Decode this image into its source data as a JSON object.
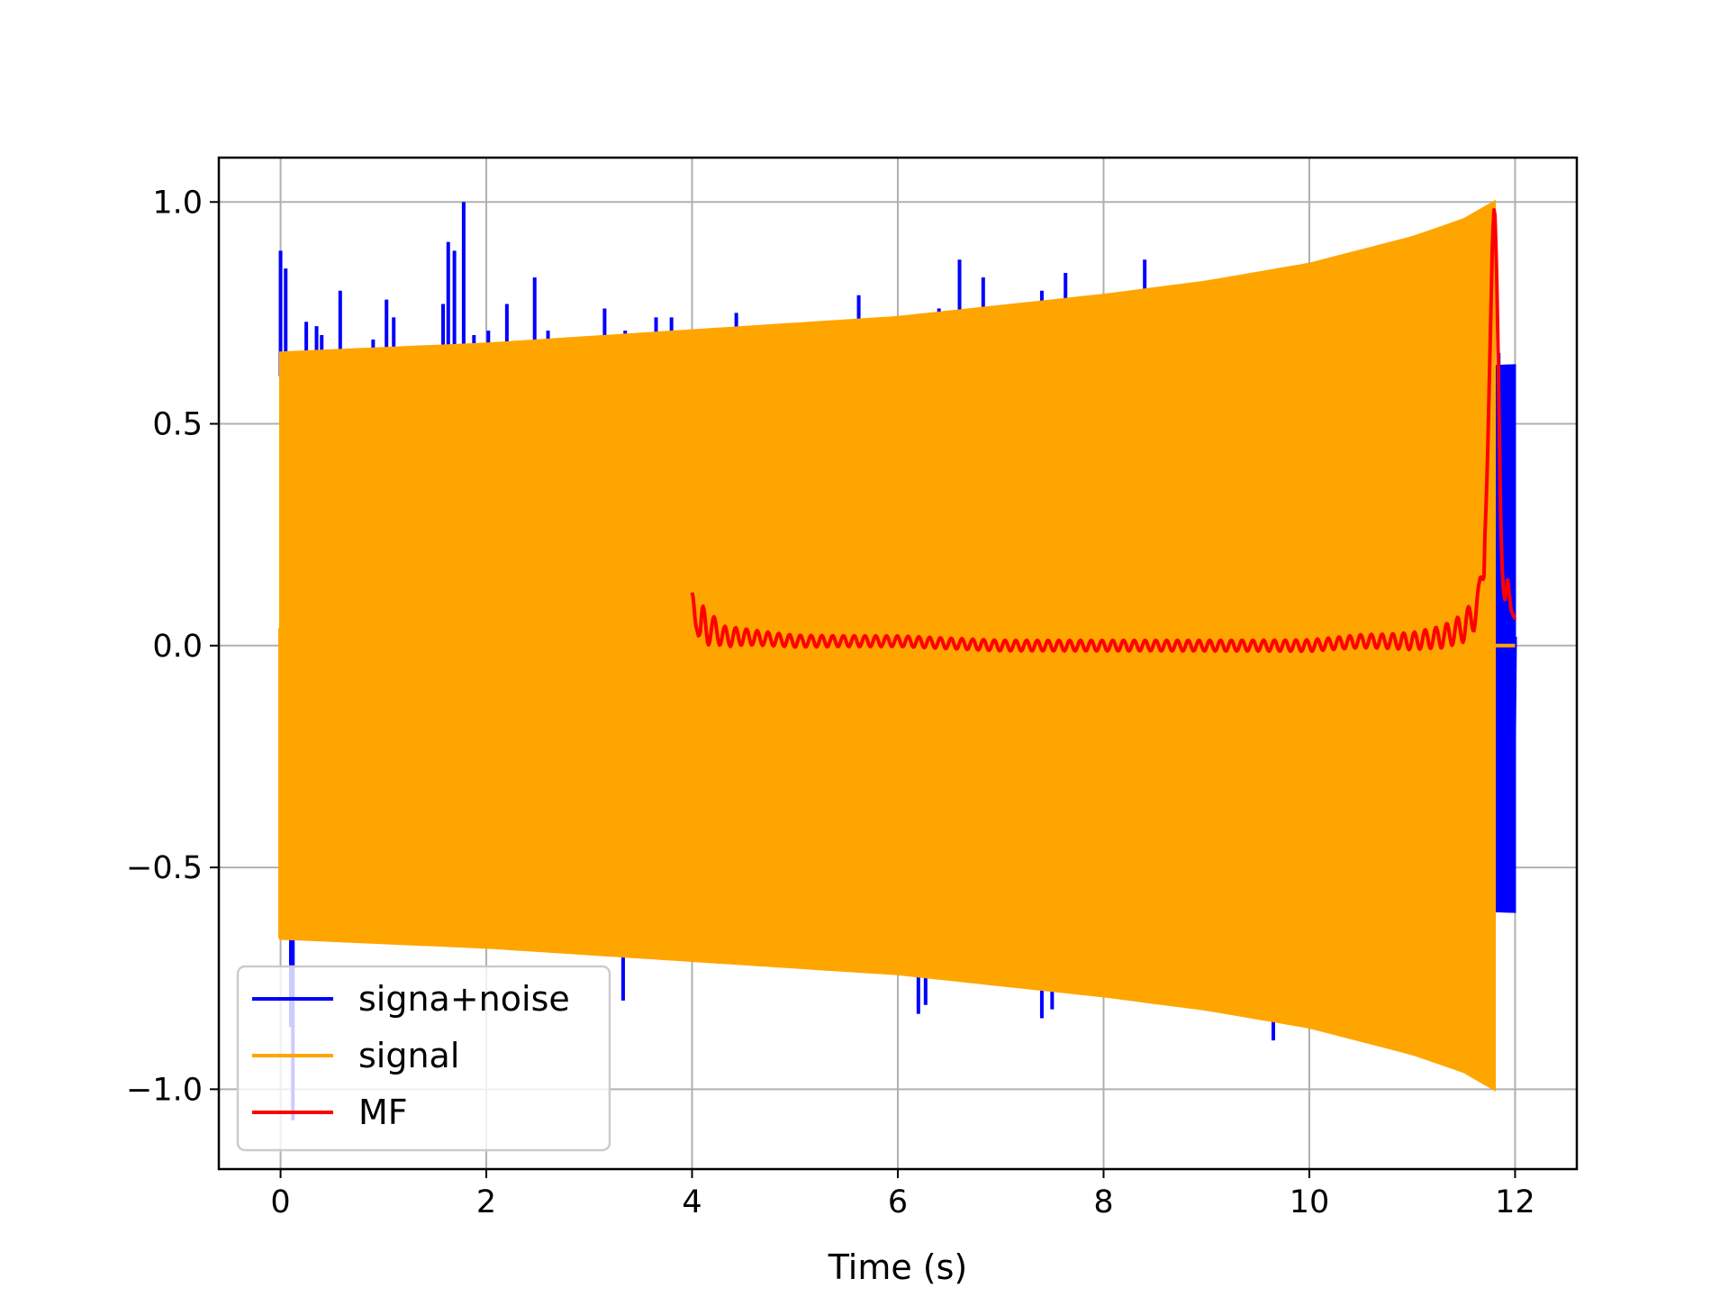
{
  "chart_data": {
    "type": "line",
    "title": "",
    "xlabel": "Time (s)",
    "ylabel": "",
    "xlim": [
      -0.6,
      12.6
    ],
    "ylim": [
      -1.18,
      1.1
    ],
    "xticks": [
      0,
      2,
      4,
      6,
      8,
      10,
      12
    ],
    "xtick_labels": [
      "0",
      "2",
      "4",
      "6",
      "8",
      "10",
      "12"
    ],
    "yticks": [
      -1.0,
      -0.5,
      0.0,
      0.5,
      1.0
    ],
    "ytick_labels": [
      "−1.0",
      "−0.5",
      "0.0",
      "0.5",
      "1.0"
    ],
    "grid": true,
    "legend_position": "lower-left",
    "series": [
      {
        "name": "signa+noise",
        "color": "#0000ff",
        "kind": "noisy-signal",
        "envelope_x": [
          0.0,
          2.0,
          4.0,
          6.0,
          8.0,
          9.0,
          10.0,
          11.0,
          11.5,
          11.8
        ],
        "envelope_y": [
          0.66,
          0.68,
          0.71,
          0.74,
          0.79,
          0.82,
          0.86,
          0.92,
          0.96,
          1.0
        ],
        "spikes": [
          {
            "x": 0.0,
            "y": 0.89
          },
          {
            "x": 0.05,
            "y": 0.85
          },
          {
            "x": 0.1,
            "y": -0.86
          },
          {
            "x": 0.12,
            "y": -1.07
          },
          {
            "x": 0.25,
            "y": 0.73
          },
          {
            "x": 0.35,
            "y": 0.72
          },
          {
            "x": 0.4,
            "y": 0.7
          },
          {
            "x": 0.58,
            "y": 0.8
          },
          {
            "x": 0.9,
            "y": 0.69
          },
          {
            "x": 1.03,
            "y": 0.78
          },
          {
            "x": 1.1,
            "y": 0.74
          },
          {
            "x": 1.58,
            "y": 0.77
          },
          {
            "x": 1.63,
            "y": 0.91
          },
          {
            "x": 1.69,
            "y": 0.89
          },
          {
            "x": 1.78,
            "y": 1.0
          },
          {
            "x": 1.88,
            "y": 0.7
          },
          {
            "x": 2.02,
            "y": 0.71
          },
          {
            "x": 2.2,
            "y": 0.77
          },
          {
            "x": 2.47,
            "y": 0.83
          },
          {
            "x": 2.6,
            "y": 0.71
          },
          {
            "x": 3.15,
            "y": 0.76
          },
          {
            "x": 3.33,
            "y": -0.8
          },
          {
            "x": 3.35,
            "y": 0.71
          },
          {
            "x": 3.65,
            "y": 0.74
          },
          {
            "x": 3.8,
            "y": 0.74
          },
          {
            "x": 4.43,
            "y": 0.75
          },
          {
            "x": 5.62,
            "y": 0.79
          },
          {
            "x": 6.2,
            "y": -0.83
          },
          {
            "x": 6.27,
            "y": -0.81
          },
          {
            "x": 6.4,
            "y": 0.76
          },
          {
            "x": 6.6,
            "y": 0.87
          },
          {
            "x": 6.83,
            "y": 0.83
          },
          {
            "x": 7.4,
            "y": 0.8
          },
          {
            "x": 7.4,
            "y": -0.84
          },
          {
            "x": 7.5,
            "y": -0.82
          },
          {
            "x": 7.63,
            "y": 0.84
          },
          {
            "x": 8.4,
            "y": 0.87
          },
          {
            "x": 9.65,
            "y": -0.89
          },
          {
            "x": 11.58,
            "y": 0.5
          },
          {
            "x": 11.68,
            "y": -0.4
          }
        ],
        "tail_x": [
          11.8,
          11.82,
          11.84,
          11.86,
          11.88,
          11.9,
          11.92,
          11.94,
          11.96,
          11.98,
          12.0
        ],
        "tail_y": [
          0.35,
          -0.49,
          0.66,
          -0.43,
          0.44,
          -0.47,
          0.49,
          -0.38,
          0.48,
          -0.48,
          0.02
        ]
      },
      {
        "name": "signal",
        "color": "#ffa500",
        "kind": "chirp",
        "x_range": [
          0.0,
          11.8
        ],
        "envelope_x": [
          0.0,
          2.0,
          4.0,
          6.0,
          8.0,
          9.0,
          10.0,
          11.0,
          11.5,
          11.8
        ],
        "envelope_y": [
          0.66,
          0.68,
          0.71,
          0.74,
          0.79,
          0.82,
          0.86,
          0.92,
          0.96,
          1.0
        ],
        "after_x": [
          11.8,
          12.0
        ],
        "after_y": [
          0.0,
          0.0
        ]
      },
      {
        "name": "MF",
        "color": "#ff0000",
        "kind": "matched-filter",
        "x": [
          4.0,
          4.03,
          4.05,
          4.08,
          4.1,
          4.15,
          4.2,
          4.3,
          4.5,
          5.0,
          6.0,
          7.0,
          8.0,
          9.0,
          10.0,
          10.5,
          11.0,
          11.3,
          11.5,
          11.6,
          11.65,
          11.7,
          11.73,
          11.76,
          11.78,
          11.8,
          11.82,
          11.84,
          11.86,
          11.88,
          11.9,
          11.93,
          11.96,
          12.0
        ],
        "y": [
          0.08,
          0.05,
          0.07,
          0.04,
          0.06,
          0.03,
          0.04,
          0.02,
          0.02,
          0.01,
          0.01,
          0.0,
          0.0,
          0.0,
          0.0,
          0.01,
          0.01,
          0.02,
          0.04,
          0.07,
          0.1,
          0.2,
          0.4,
          0.7,
          0.92,
          1.0,
          0.86,
          0.58,
          0.28,
          0.14,
          0.1,
          0.15,
          0.08,
          0.06
        ],
        "ripple_amp": 0.012
      }
    ]
  }
}
